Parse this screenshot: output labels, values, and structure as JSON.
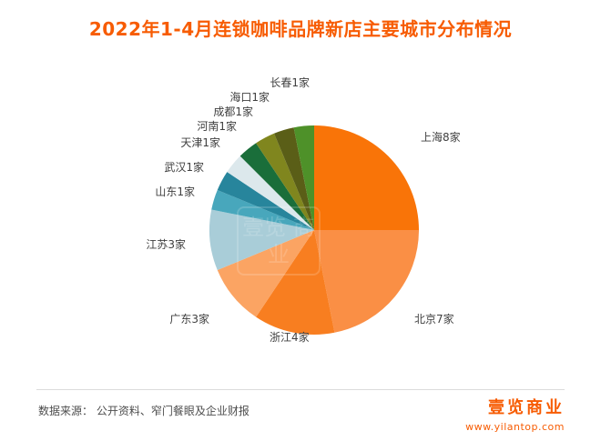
{
  "title": "2022年1-4月连锁咖啡品牌新店主要城市分布情况",
  "colors": {
    "title": "#f75c03",
    "brand": "#f75c03",
    "label_text": "#3f3f3f",
    "source_text": "#4d4d4d"
  },
  "watermark_text": "壹览 商业",
  "footer": {
    "source_label": "数据来源：",
    "source_text": " 公开资料、窄门餐眼及企业财报"
  },
  "brand": {
    "logo_text": "壹览商业",
    "website": "www.yilantop.com"
  },
  "chart_data": {
    "type": "pie",
    "title": "2022年1-4月连锁咖啡品牌新店主要城市分布情况",
    "unit": "家",
    "total": 32,
    "start_angle_deg": 0,
    "direction": "clockwise",
    "legend": "none",
    "label_style": "outside",
    "slices": [
      {
        "id": "shanghai",
        "name": "上海",
        "label": "上海8家",
        "value": 8,
        "color": "#f97408"
      },
      {
        "id": "beijing",
        "name": "北京",
        "label": "北京7家",
        "value": 7,
        "color": "#fa8f45"
      },
      {
        "id": "zhejiang",
        "name": "浙江",
        "label": "浙江4家",
        "value": 4,
        "color": "#f87e20"
      },
      {
        "id": "guangdong",
        "name": "广东",
        "label": "广东3家",
        "value": 3,
        "color": "#fba463"
      },
      {
        "id": "jiangsu",
        "name": "江苏",
        "label": "江苏3家",
        "value": 3,
        "color": "#a9cdd8"
      },
      {
        "id": "shandong",
        "name": "山东",
        "label": "山东1家",
        "value": 1,
        "color": "#48a7bc"
      },
      {
        "id": "wuhan",
        "name": "武汉",
        "label": "武汉1家",
        "value": 1,
        "color": "#27859c"
      },
      {
        "id": "tianjin",
        "name": "天津",
        "label": "天津1家",
        "value": 1,
        "color": "#dce8ec"
      },
      {
        "id": "henan",
        "name": "河南",
        "label": "河南1家",
        "value": 1,
        "color": "#1a6e3a"
      },
      {
        "id": "chengdu",
        "name": "成都",
        "label": "成都1家",
        "value": 1,
        "color": "#80861e"
      },
      {
        "id": "haikou",
        "name": "海口",
        "label": "海口1家",
        "value": 1,
        "color": "#5a5e17"
      },
      {
        "id": "changchun",
        "name": "长春",
        "label": "长春1家",
        "value": 1,
        "color": "#4e9129"
      }
    ]
  }
}
